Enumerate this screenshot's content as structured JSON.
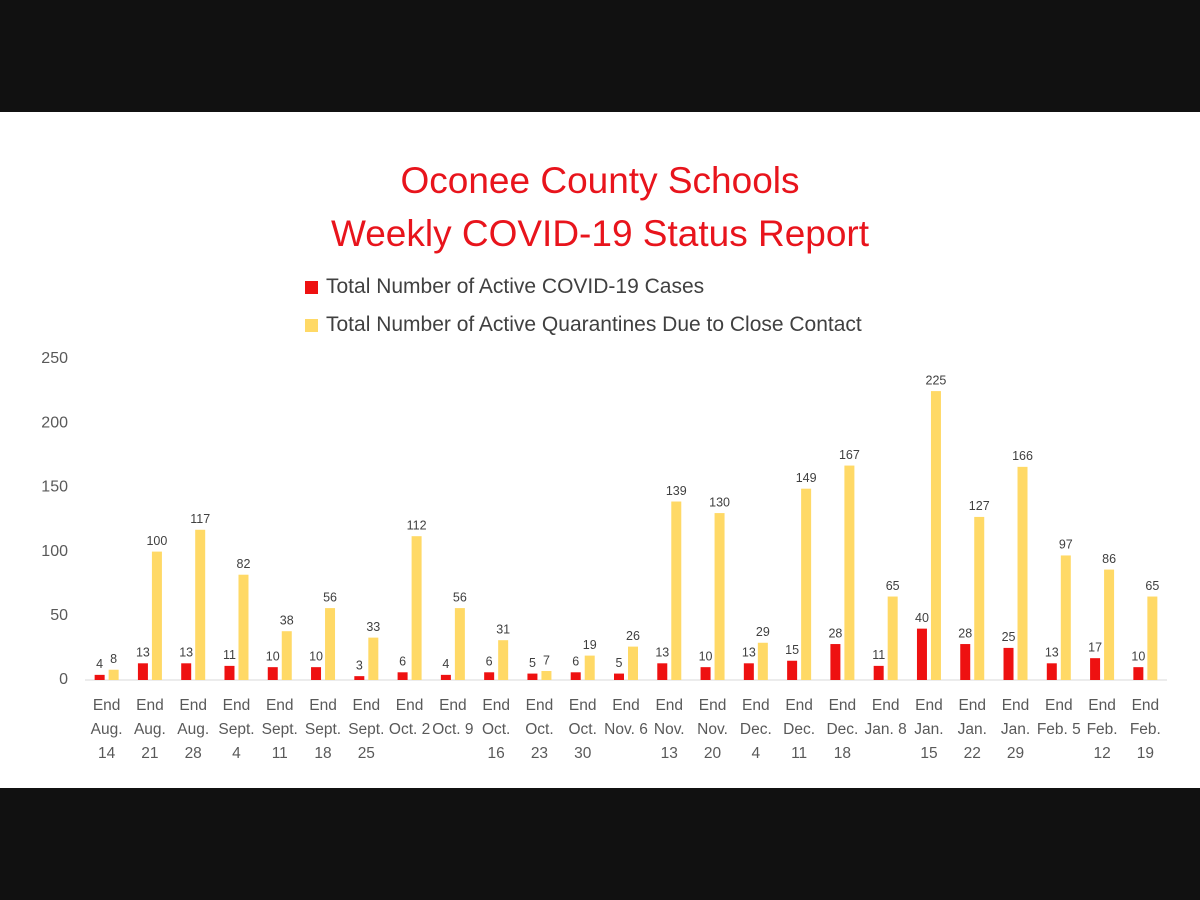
{
  "chart_data": {
    "type": "bar",
    "title": "Oconee County Schools\nWeekly COVID-19 Status Report",
    "categories": [
      "End Aug. 14",
      "End Aug. 21",
      "End Aug. 28",
      "End Sept. 4",
      "End Sept. 11",
      "End Sept. 18",
      "End Sept. 25",
      "End Oct. 2",
      "End Oct. 9",
      "End Oct. 16",
      "End Oct. 23",
      "End Oct. 30",
      "End Nov. 6",
      "End Nov. 13",
      "End Nov. 20",
      "End Dec. 4",
      "End Dec. 11",
      "End Dec. 18",
      "End Jan. 8",
      "End Jan. 15",
      "End Jan. 22",
      "End Jan. 29",
      "End Feb. 5",
      "End Feb. 12",
      "End Feb. 19"
    ],
    "series": [
      {
        "name": "Total Number of Active COVID-19 Cases",
        "color": "#ee1111",
        "values": [
          4,
          13,
          13,
          11,
          10,
          10,
          3,
          6,
          4,
          6,
          5,
          6,
          5,
          13,
          10,
          13,
          15,
          28,
          11,
          40,
          28,
          25,
          13,
          17,
          10
        ]
      },
      {
        "name": "Total Number of Active Quarantines Due to Close Contact",
        "color": "#ffd966",
        "values": [
          8,
          100,
          117,
          82,
          38,
          56,
          33,
          112,
          56,
          31,
          7,
          19,
          26,
          139,
          130,
          29,
          149,
          167,
          65,
          225,
          127,
          166,
          97,
          86,
          65
        ]
      }
    ],
    "ylim": [
      0,
      250
    ],
    "yticks": [
      0,
      50,
      100,
      150,
      200,
      250
    ],
    "grid": false,
    "legend": "top"
  }
}
